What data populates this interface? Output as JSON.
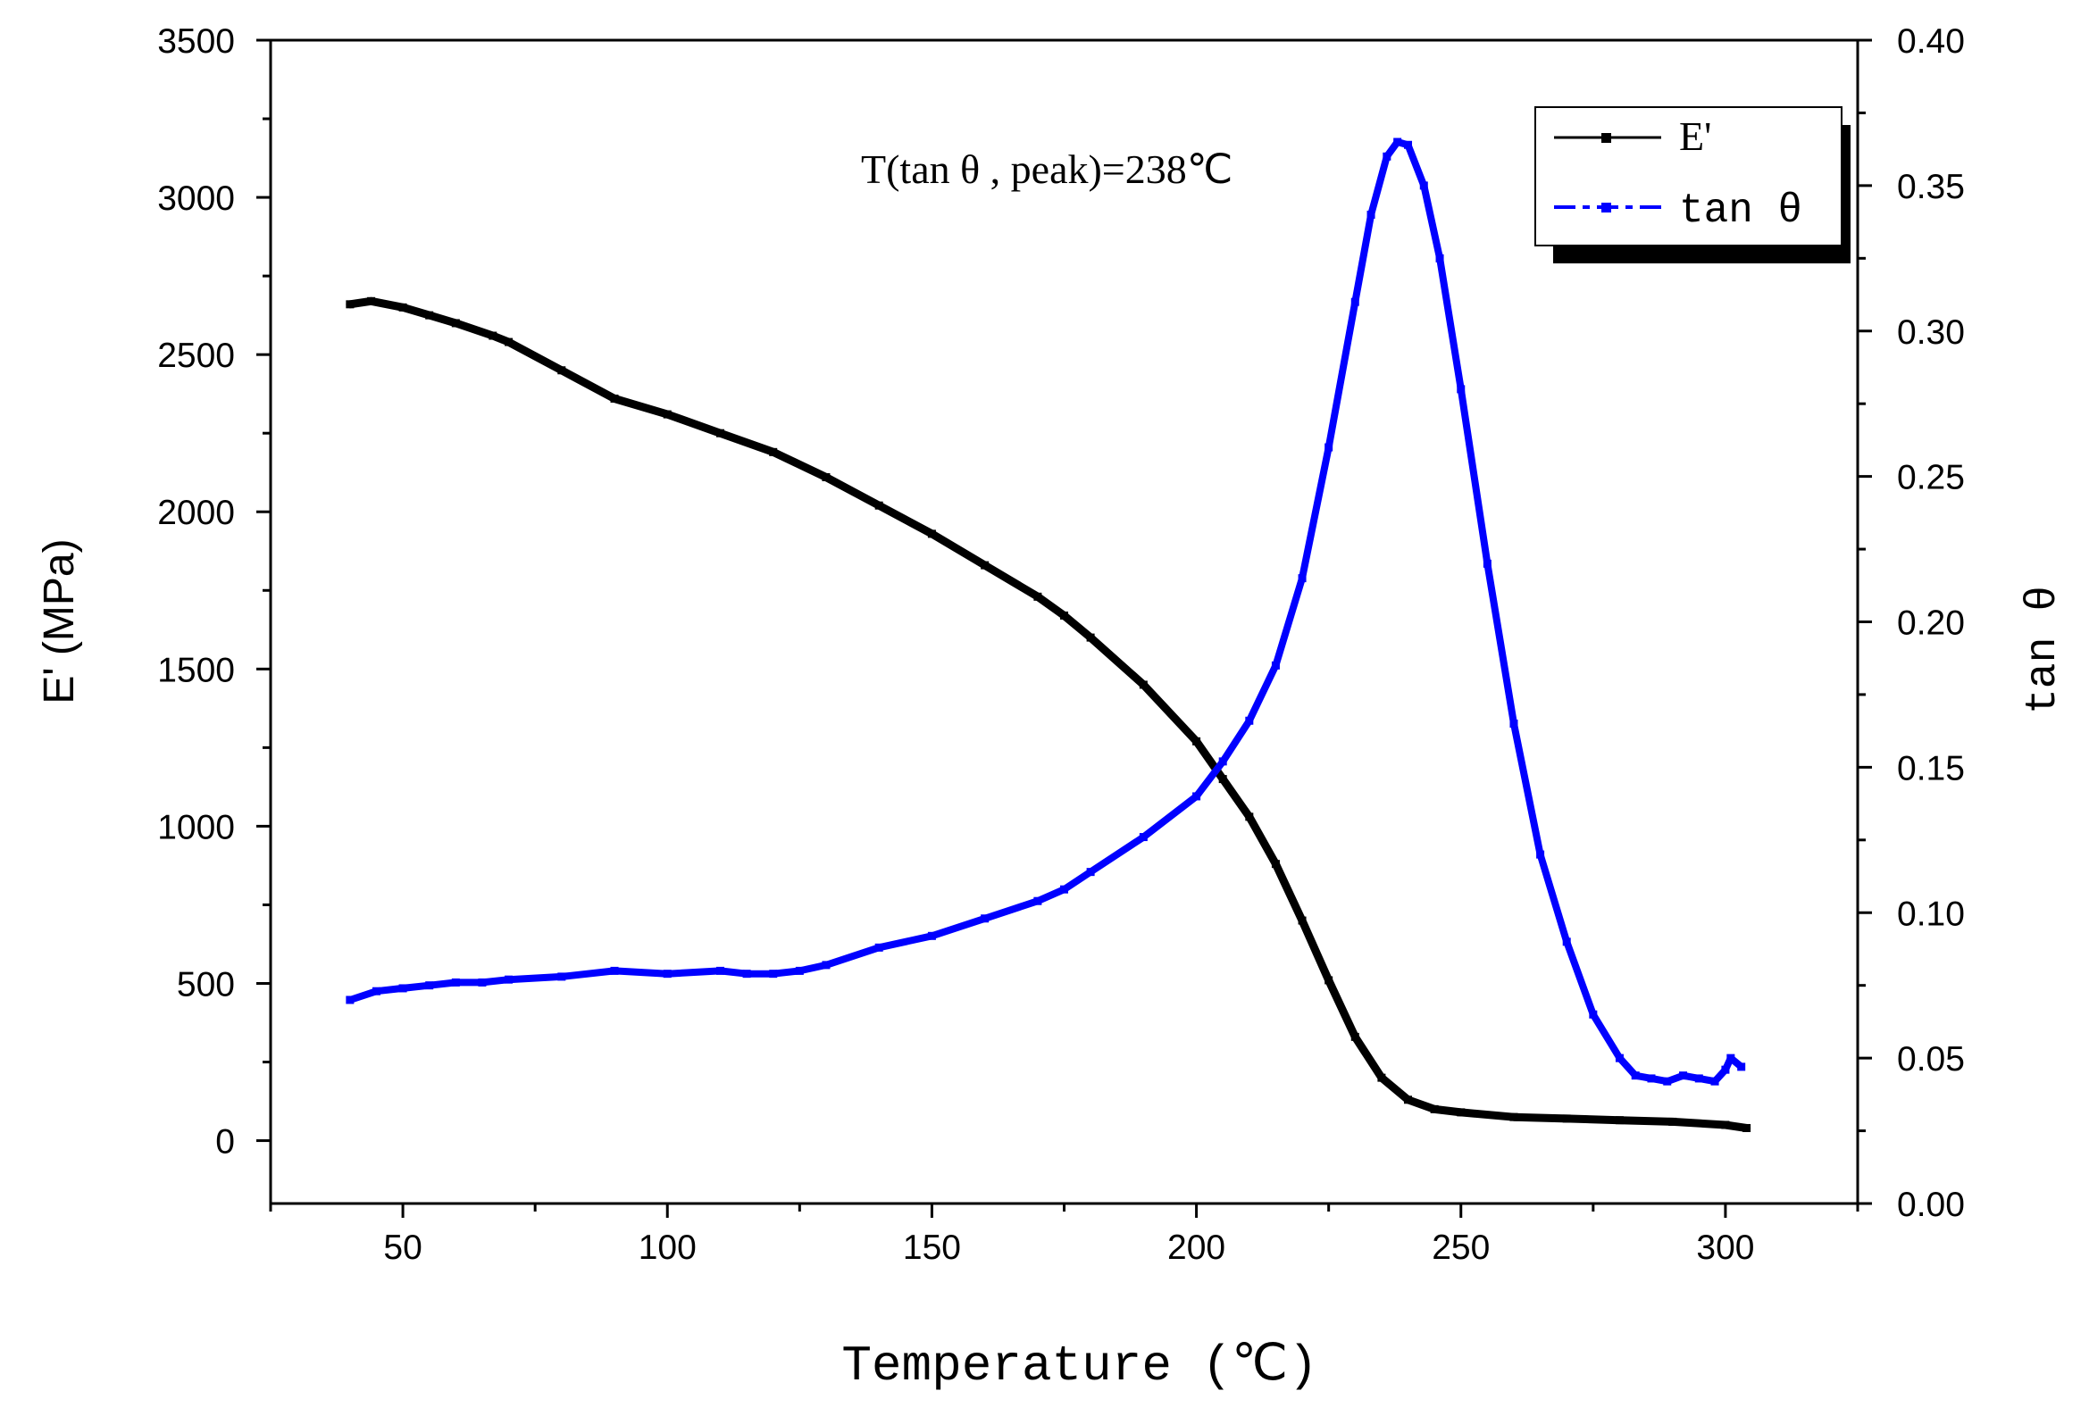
{
  "chart_data": {
    "type": "line",
    "xlabel": "Temperature (℃)",
    "ylabel": "E' (MPa)",
    "y2label": "tan θ",
    "xlim": [
      25,
      325
    ],
    "ylim": [
      -200,
      3500
    ],
    "y2lim": [
      0,
      0.4
    ],
    "xticks": [
      "50",
      "100",
      "150",
      "200",
      "250",
      "300"
    ],
    "yticks": [
      "0",
      "500",
      "1000",
      "1500",
      "2000",
      "2500",
      "3000",
      "3500"
    ],
    "y2ticks": [
      "0.00",
      "0.05",
      "0.10",
      "0.15",
      "0.20",
      "0.25",
      "0.30",
      "0.35",
      "0.40"
    ],
    "annotation": "T(tan θ , peak)=238℃",
    "legend_position": "top-right",
    "series": [
      {
        "name": "E'",
        "legend_label": "E'",
        "axis": "left",
        "color": "#000000",
        "x": [
          40,
          44,
          50,
          55,
          60,
          67,
          70,
          80,
          90,
          100,
          110,
          120,
          130,
          140,
          150,
          160,
          170,
          175,
          180,
          190,
          200,
          205,
          210,
          215,
          220,
          225,
          230,
          235,
          240,
          245,
          250,
          260,
          270,
          280,
          290,
          300,
          304
        ],
        "values": [
          2660,
          2670,
          2650,
          2625,
          2600,
          2560,
          2540,
          2450,
          2360,
          2310,
          2250,
          2190,
          2110,
          2020,
          1930,
          1830,
          1730,
          1670,
          1600,
          1450,
          1270,
          1150,
          1030,
          880,
          700,
          510,
          330,
          200,
          130,
          100,
          90,
          75,
          70,
          65,
          60,
          50,
          40
        ]
      },
      {
        "name": "tan θ",
        "legend_label": "tan θ",
        "axis": "right",
        "color": "#0000ff",
        "x": [
          40,
          45,
          50,
          55,
          60,
          65,
          70,
          80,
          90,
          100,
          110,
          115,
          120,
          125,
          130,
          140,
          150,
          160,
          170,
          175,
          180,
          190,
          200,
          205,
          210,
          215,
          220,
          225,
          230,
          233,
          236,
          238,
          240,
          243,
          246,
          250,
          255,
          260,
          265,
          270,
          275,
          280,
          283,
          286,
          289,
          292,
          295,
          298,
          300,
          301,
          303
        ],
        "values": [
          0.07,
          0.073,
          0.074,
          0.075,
          0.076,
          0.076,
          0.077,
          0.078,
          0.08,
          0.079,
          0.08,
          0.079,
          0.079,
          0.08,
          0.082,
          0.088,
          0.092,
          0.098,
          0.104,
          0.108,
          0.114,
          0.126,
          0.14,
          0.152,
          0.166,
          0.185,
          0.215,
          0.26,
          0.31,
          0.34,
          0.36,
          0.365,
          0.364,
          0.35,
          0.325,
          0.28,
          0.22,
          0.165,
          0.12,
          0.09,
          0.065,
          0.05,
          0.044,
          0.043,
          0.042,
          0.044,
          0.043,
          0.042,
          0.046,
          0.05,
          0.047
        ]
      }
    ]
  }
}
